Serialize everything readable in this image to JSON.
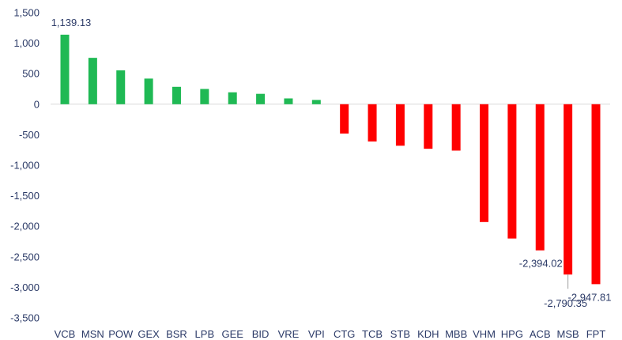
{
  "chart_data": {
    "type": "bar",
    "title": "",
    "xlabel": "",
    "ylabel": "",
    "categories": [
      "VCB",
      "MSN",
      "POW",
      "GEX",
      "BSR",
      "LPB",
      "GEE",
      "BID",
      "VRE",
      "VPI",
      "CTG",
      "TCB",
      "STB",
      "KDH",
      "MBB",
      "VHM",
      "HPG",
      "ACB",
      "MSB",
      "FPT"
    ],
    "values": [
      1139.13,
      760,
      555,
      420,
      285,
      250,
      195,
      170,
      95,
      70,
      -480,
      -610,
      -680,
      -730,
      -760,
      -1930,
      -2200,
      -2394.02,
      -2790.35,
      -2947.81
    ],
    "ylim": [
      -3500,
      1500
    ],
    "yticks": [
      1500,
      1000,
      500,
      0,
      -500,
      -1000,
      -1500,
      -2000,
      -2500,
      -3000,
      -3500
    ],
    "ytick_labels": [
      "1,500",
      "1,000",
      "500",
      "0",
      "-500",
      "-1,000",
      "-1,500",
      "-2,000",
      "-2,500",
      "-3,000",
      "-3,500"
    ],
    "data_labels": [
      {
        "category": "VCB",
        "text": "1,139.13"
      },
      {
        "category": "ACB",
        "text": "-2,394.02"
      },
      {
        "category": "MSB",
        "text": "-2,790.35"
      },
      {
        "category": "FPT",
        "text": "-2,947.81"
      }
    ],
    "colors": {
      "positive": "#1fb954",
      "negative": "#ff0000",
      "text": "#2b3a67",
      "zero_line": "#d9d9d9",
      "leader_line": "#9e9e9e"
    },
    "grid": false,
    "legend": "none"
  }
}
